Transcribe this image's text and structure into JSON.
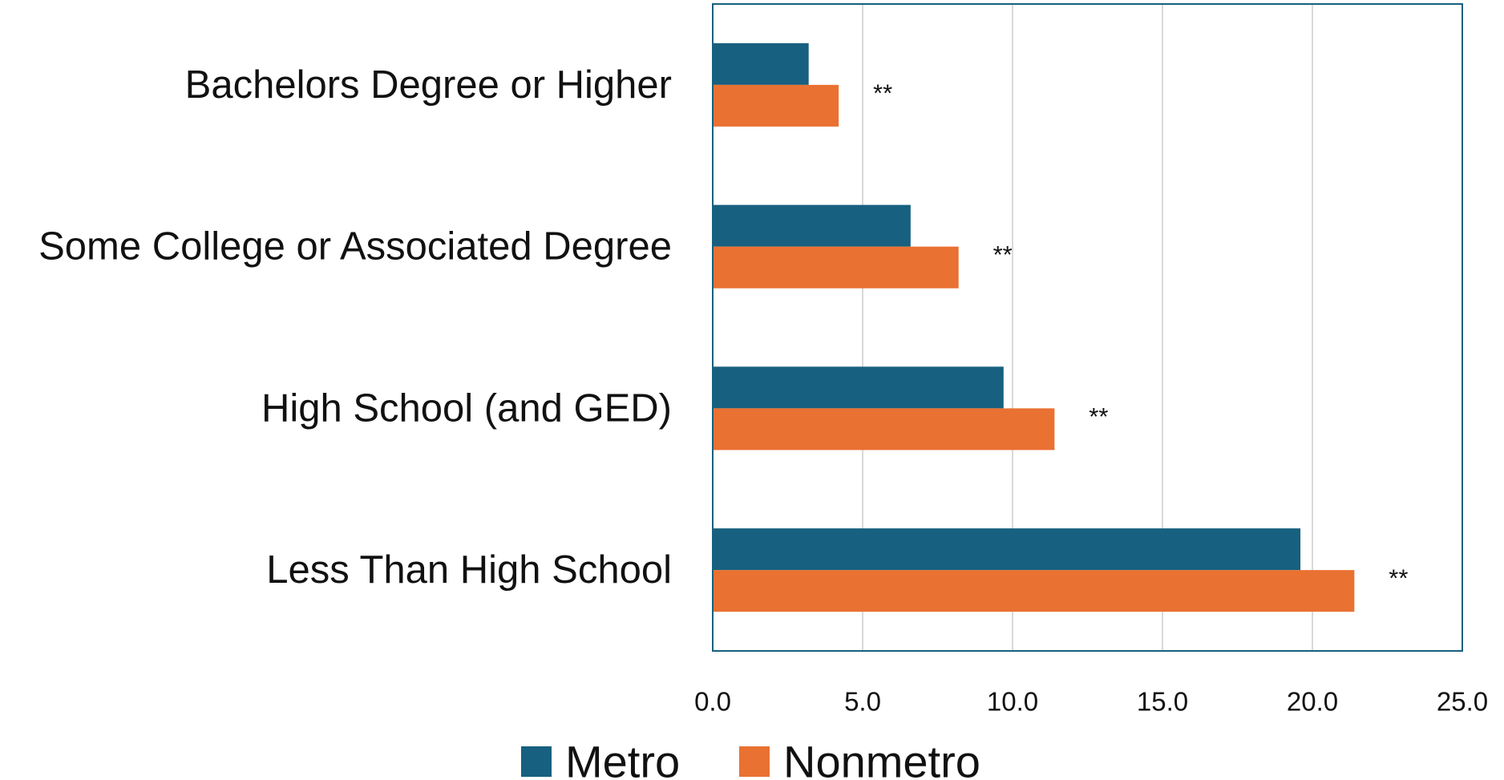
{
  "chart_data": {
    "type": "bar",
    "orientation": "horizontal",
    "categories": [
      "Bachelors Degree or Higher",
      "Some College or Associated Degree",
      "High School (and GED)",
      "Less Than High School"
    ],
    "series": [
      {
        "name": "Metro",
        "color": "#17607f",
        "values": [
          3.2,
          6.6,
          9.7,
          19.6
        ]
      },
      {
        "name": "Nonmetro",
        "color": "#e97132",
        "values": [
          4.2,
          8.2,
          11.4,
          21.4
        ]
      }
    ],
    "annotations": [
      "**",
      "**",
      "**",
      "**"
    ],
    "xlim": [
      0,
      25
    ],
    "xticks": [
      "0.0",
      "5.0",
      "10.0",
      "15.0",
      "20.0",
      "25.0"
    ],
    "grid": true,
    "legend_position": "bottom",
    "frame_color": "#17607f",
    "gridline_color": "#d9d9d9"
  }
}
